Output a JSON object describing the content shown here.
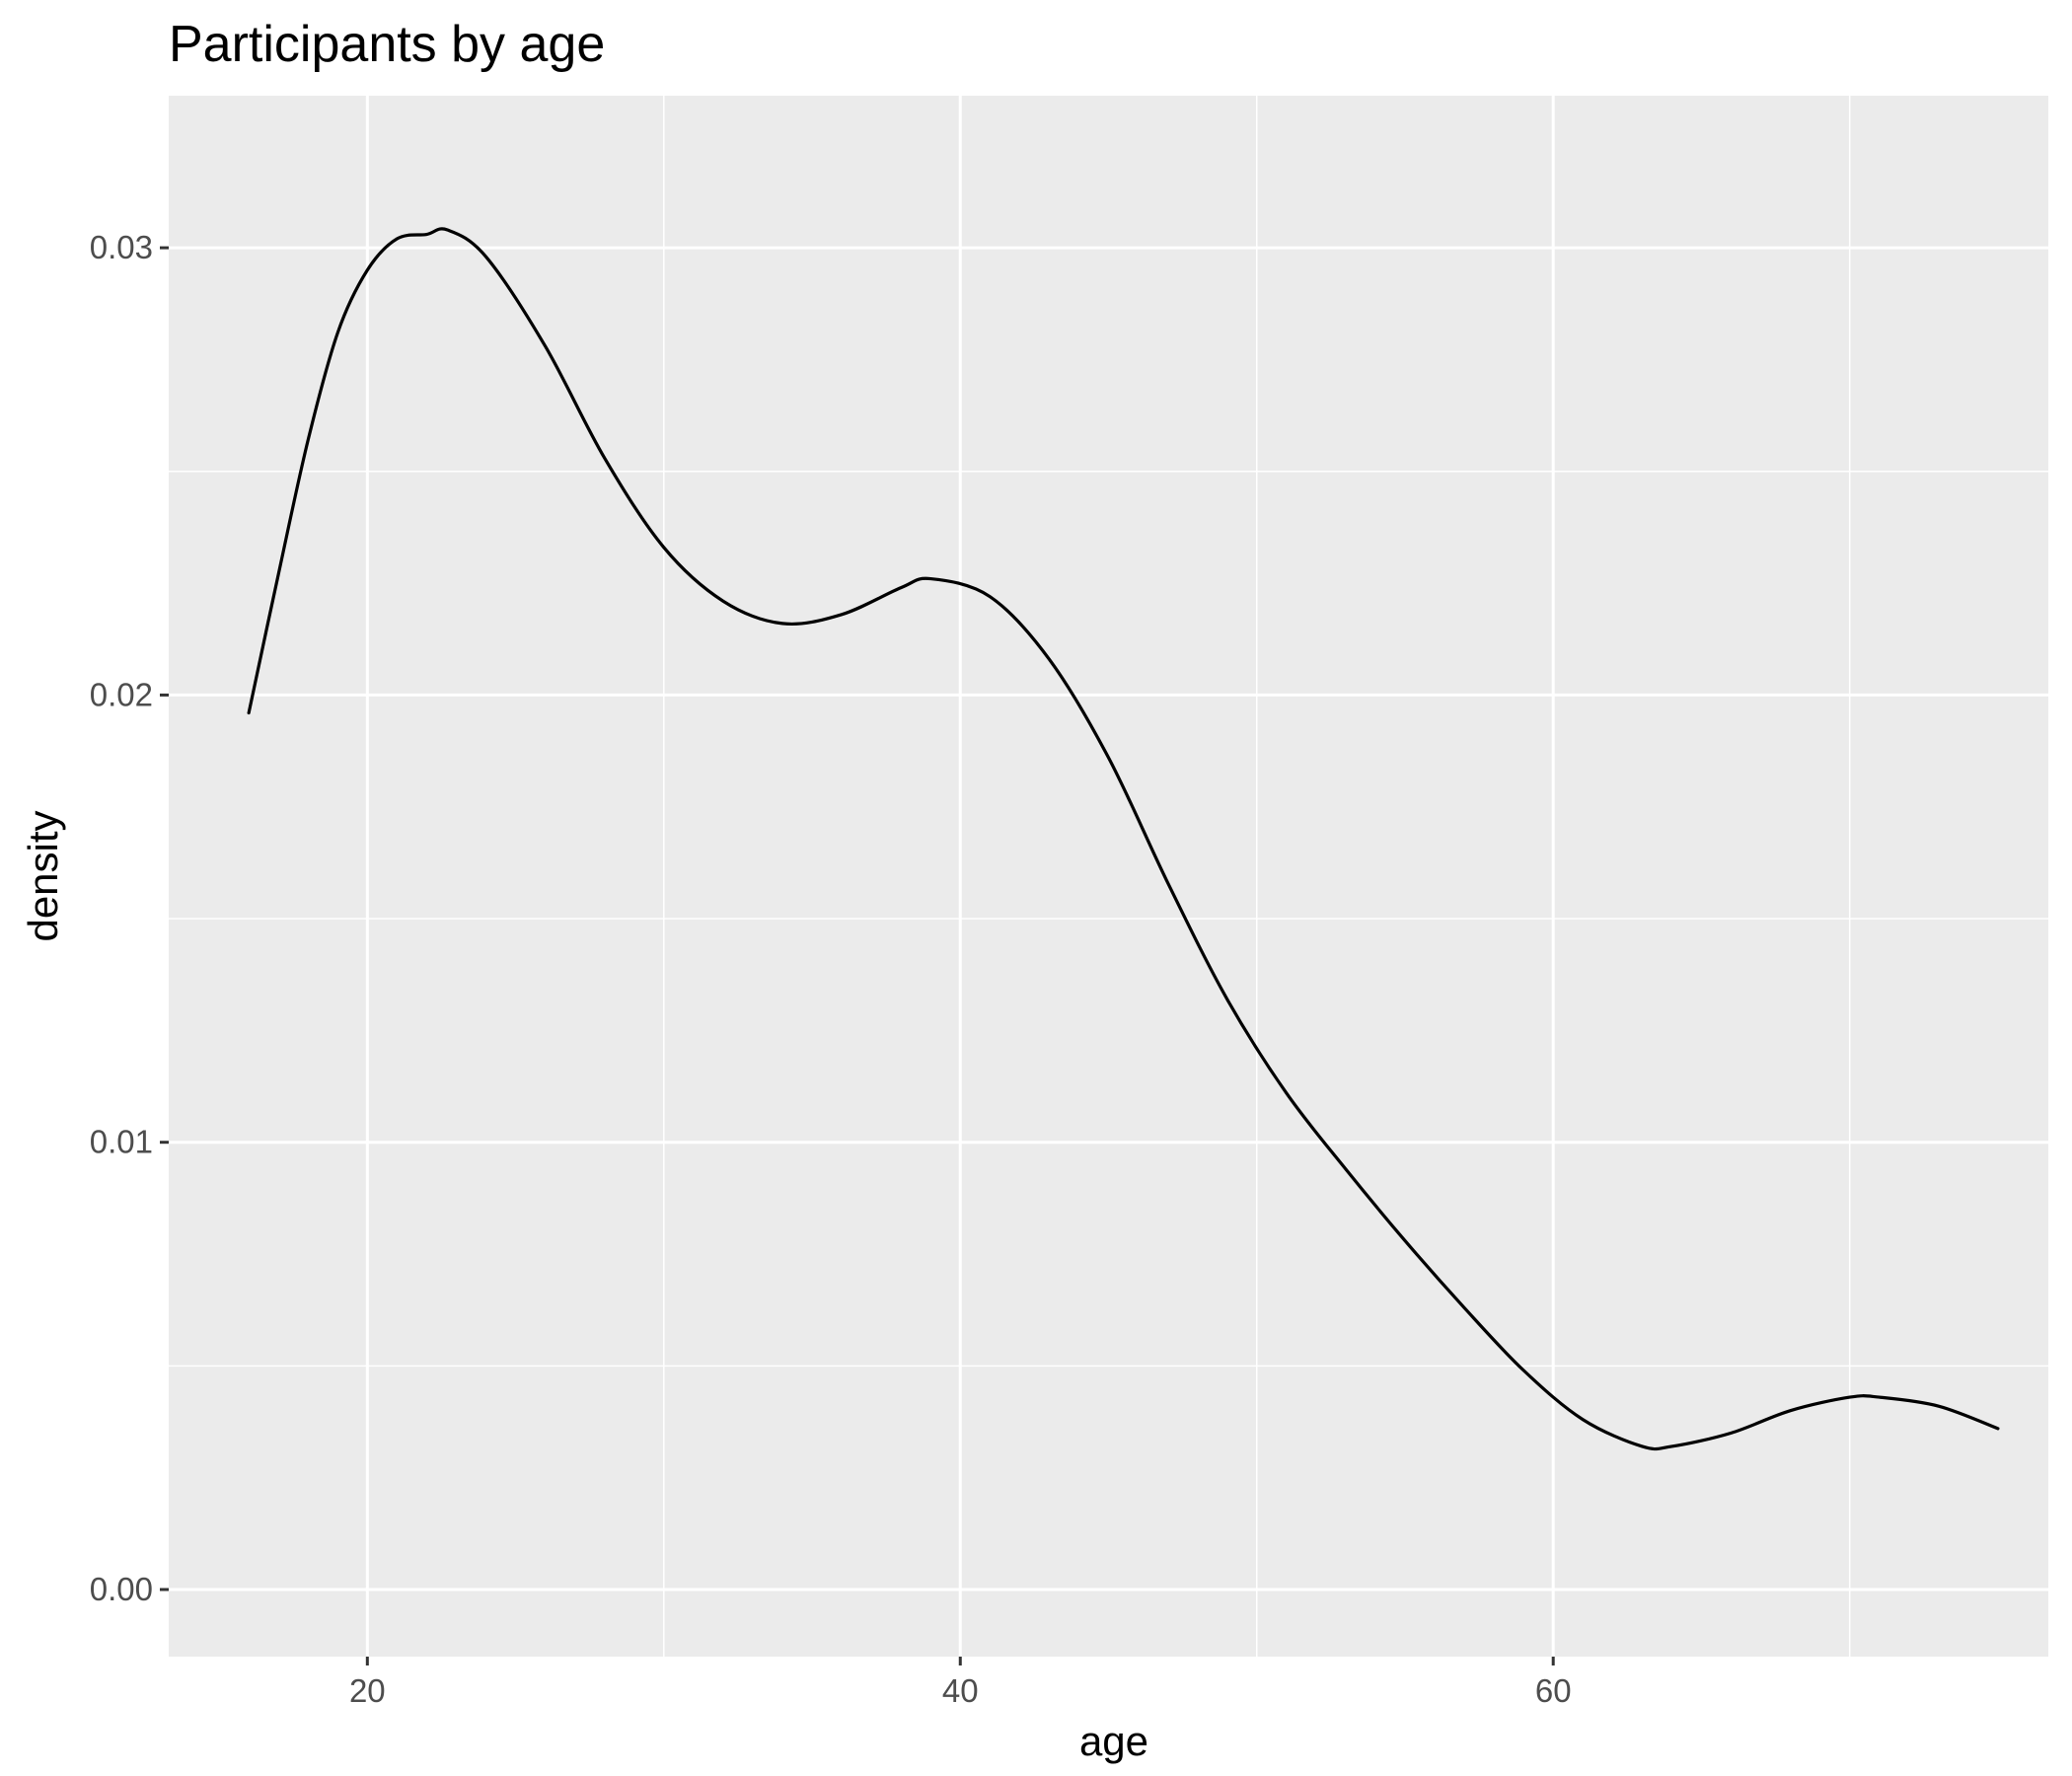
{
  "chart_data": {
    "type": "line",
    "title": "Participants by age",
    "xlabel": "age",
    "ylabel": "density",
    "xlim": [
      13.3,
      76.7
    ],
    "ylim": [
      -0.0015,
      0.0334
    ],
    "x_ticks": [
      20,
      40,
      60
    ],
    "x_tick_labels": [
      "20",
      "40",
      "60"
    ],
    "x_minor_ticks": [
      30,
      50,
      70
    ],
    "y_ticks": [
      0.0,
      0.01,
      0.02,
      0.03
    ],
    "y_tick_labels": [
      "0.00",
      "0.01",
      "0.02",
      "0.03"
    ],
    "y_minor_ticks": [
      0.005,
      0.015,
      0.025
    ],
    "grid": true,
    "legend": "none",
    "colors": {
      "panel_background": "#EBEBEB",
      "grid": "#FFFFFF",
      "line": "#000000",
      "tick_label": "#4D4D4D"
    },
    "series": [
      {
        "x": [
          16,
          17,
          18,
          19,
          20,
          21,
          22,
          22.7,
          24,
          26,
          28,
          30,
          32,
          34,
          36,
          38,
          39,
          41,
          43,
          45,
          47,
          49,
          51,
          53,
          55,
          57,
          59,
          61,
          63,
          64,
          66,
          68,
          70,
          71,
          73,
          75
        ],
        "y": [
          0.0196,
          0.0227,
          0.0257,
          0.0281,
          0.0295,
          0.0302,
          0.0303,
          0.0304,
          0.0298,
          0.0278,
          0.0253,
          0.0233,
          0.0221,
          0.0216,
          0.0218,
          0.0224,
          0.0226,
          0.0222,
          0.0208,
          0.0186,
          0.0158,
          0.0132,
          0.0111,
          0.0094,
          0.0078,
          0.0063,
          0.0049,
          0.0038,
          0.0032,
          0.0032,
          0.0035,
          0.004,
          0.0043,
          0.0043,
          0.0041,
          0.0036
        ]
      }
    ]
  }
}
